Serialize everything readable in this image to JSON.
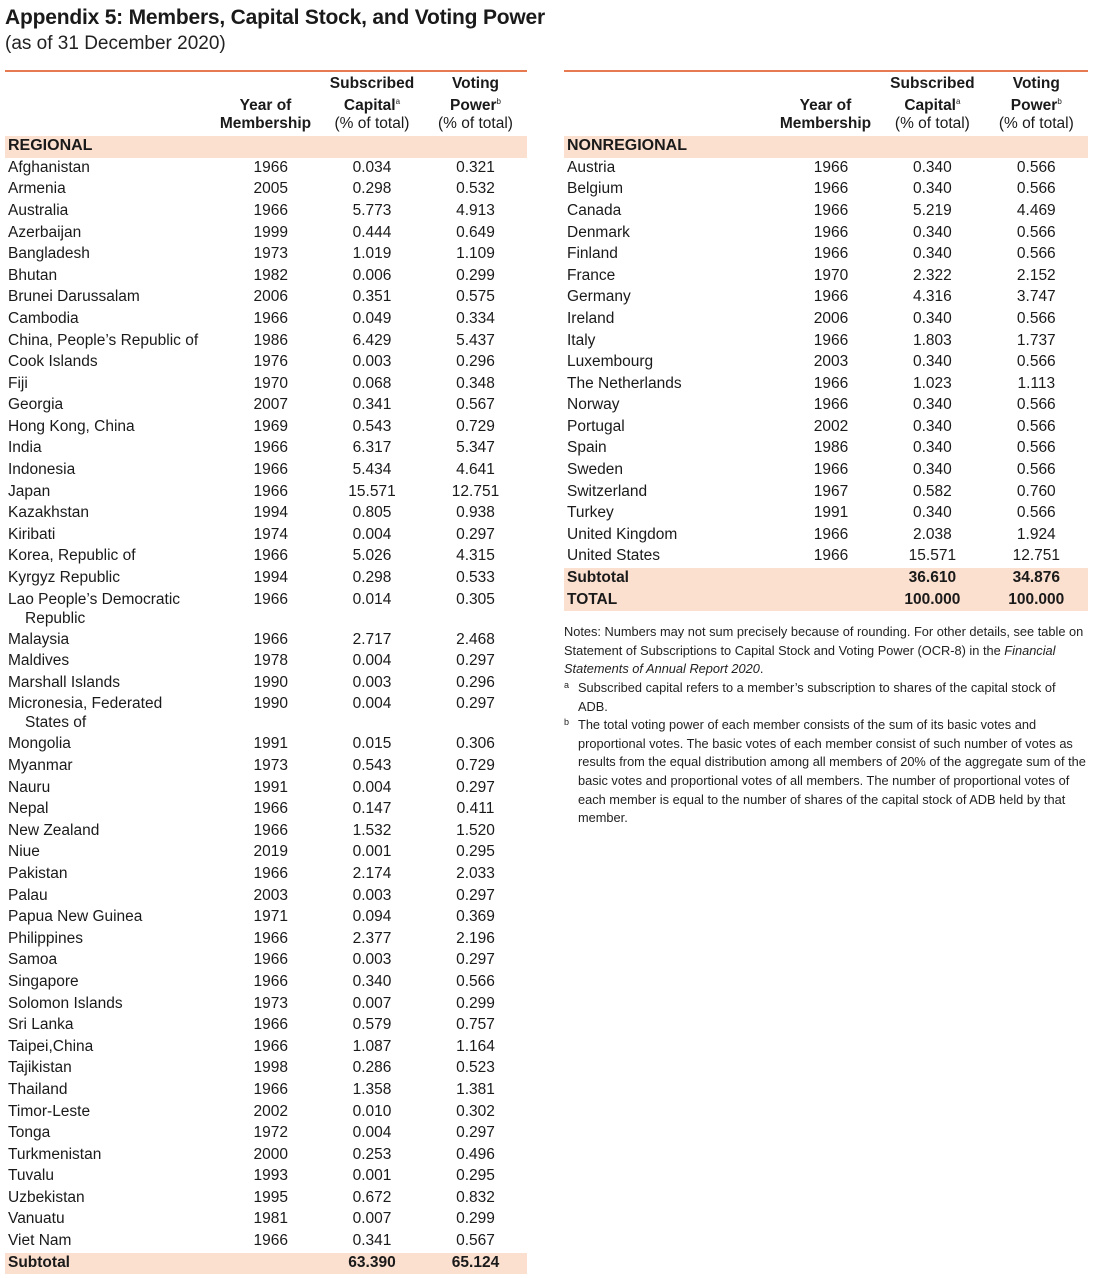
{
  "title": "Appendix 5: Members, Capital Stock, and Voting Power",
  "subtitle": "(as of 31 December 2020)",
  "headers": {
    "year_line1": "Year of",
    "year_line2": "Membership",
    "sub_line1": "Subscribed",
    "sub_line2": "Capital",
    "sub_mark": "a",
    "vote_line1": "Voting",
    "vote_line2": "Power",
    "vote_mark": "b",
    "pct": "(% of total)"
  },
  "regional": {
    "label": "REGIONAL",
    "rows": [
      {
        "name": "Afghanistan",
        "year": "1966",
        "sub": "0.034",
        "vote": "0.321"
      },
      {
        "name": "Armenia",
        "year": "2005",
        "sub": "0.298",
        "vote": "0.532"
      },
      {
        "name": "Australia",
        "year": "1966",
        "sub": "5.773",
        "vote": "4.913"
      },
      {
        "name": "Azerbaijan",
        "year": "1999",
        "sub": "0.444",
        "vote": "0.649"
      },
      {
        "name": "Bangladesh",
        "year": "1973",
        "sub": "1.019",
        "vote": "1.109"
      },
      {
        "name": "Bhutan",
        "year": "1982",
        "sub": "0.006",
        "vote": "0.299"
      },
      {
        "name": "Brunei Darussalam",
        "year": "2006",
        "sub": "0.351",
        "vote": "0.575"
      },
      {
        "name": "Cambodia",
        "year": "1966",
        "sub": "0.049",
        "vote": "0.334"
      },
      {
        "name": " China, People’s Republic of",
        "year": "1986",
        "sub": "6.429",
        "vote": "5.437"
      },
      {
        "name": "Cook Islands",
        "year": "1976",
        "sub": "0.003",
        "vote": "0.296"
      },
      {
        "name": "Fiji",
        "year": "1970",
        "sub": "0.068",
        "vote": "0.348"
      },
      {
        "name": "Georgia",
        "year": "2007",
        "sub": "0.341",
        "vote": "0.567"
      },
      {
        "name": "Hong Kong, China",
        "year": "1969",
        "sub": "0.543",
        "vote": "0.729"
      },
      {
        "name": "India",
        "year": "1966",
        "sub": "6.317",
        "vote": "5.347"
      },
      {
        "name": "Indonesia",
        "year": "1966",
        "sub": "5.434",
        "vote": "4.641"
      },
      {
        "name": "Japan",
        "year": "1966",
        "sub": "15.571",
        "vote": "12.751"
      },
      {
        "name": "Kazakhstan",
        "year": "1994",
        "sub": "0.805",
        "vote": "0.938"
      },
      {
        "name": "Kiribati",
        "year": "1974",
        "sub": "0.004",
        "vote": "0.297"
      },
      {
        "name": "Korea, Republic of",
        "year": "1966",
        "sub": "5.026",
        "vote": "4.315"
      },
      {
        "name": "Kyrgyz Republic",
        "year": "1994",
        "sub": "0.298",
        "vote": "0.533"
      },
      {
        "name": "Lao People’s Democratic",
        "name2": "Republic",
        "year": "1966",
        "sub": "0.014",
        "vote": "0.305"
      },
      {
        "name": "Malaysia",
        "year": "1966",
        "sub": "2.717",
        "vote": "2.468"
      },
      {
        "name": "Maldives",
        "year": "1978",
        "sub": "0.004",
        "vote": "0.297"
      },
      {
        "name": "Marshall Islands",
        "year": "1990",
        "sub": "0.003",
        "vote": "0.296"
      },
      {
        "name": "Micronesia, Federated",
        "name2": "States of",
        "year": "1990",
        "sub": "0.004",
        "vote": "0.297"
      },
      {
        "name": "Mongolia",
        "year": "1991",
        "sub": "0.015",
        "vote": "0.306"
      },
      {
        "name": "Myanmar",
        "year": "1973",
        "sub": "0.543",
        "vote": "0.729"
      },
      {
        "name": "Nauru",
        "year": "1991",
        "sub": "0.004",
        "vote": "0.297"
      },
      {
        "name": "Nepal",
        "year": "1966",
        "sub": "0.147",
        "vote": "0.411"
      },
      {
        "name": "New Zealand",
        "year": "1966",
        "sub": "1.532",
        "vote": "1.520"
      },
      {
        "name": "Niue",
        "year": "2019",
        "sub": "0.001",
        "vote": "0.295"
      },
      {
        "name": "Pakistan",
        "year": "1966",
        "sub": "2.174",
        "vote": "2.033"
      },
      {
        "name": "Palau",
        "year": "2003",
        "sub": "0.003",
        "vote": "0.297"
      },
      {
        "name": "Papua New Guinea",
        "year": "1971",
        "sub": "0.094",
        "vote": "0.369"
      },
      {
        "name": "Philippines",
        "year": "1966",
        "sub": "2.377",
        "vote": "2.196"
      },
      {
        "name": "Samoa",
        "year": "1966",
        "sub": "0.003",
        "vote": "0.297"
      },
      {
        "name": "Singapore",
        "year": "1966",
        "sub": "0.340",
        "vote": "0.566"
      },
      {
        "name": "Solomon Islands",
        "year": "1973",
        "sub": "0.007",
        "vote": "0.299"
      },
      {
        "name": "Sri Lanka",
        "year": "1966",
        "sub": "0.579",
        "vote": "0.757"
      },
      {
        "name": "Taipei,China",
        "year": "1966",
        "sub": "1.087",
        "vote": "1.164"
      },
      {
        "name": "Tajikistan",
        "year": "1998",
        "sub": "0.286",
        "vote": "0.523"
      },
      {
        "name": "Thailand",
        "year": "1966",
        "sub": "1.358",
        "vote": "1.381"
      },
      {
        "name": "Timor-Leste",
        "year": "2002",
        "sub": "0.010",
        "vote": "0.302"
      },
      {
        "name": "Tonga",
        "year": "1972",
        "sub": "0.004",
        "vote": "0.297"
      },
      {
        "name": "Turkmenistan",
        "year": "2000",
        "sub": "0.253",
        "vote": "0.496"
      },
      {
        "name": "Tuvalu",
        "year": "1993",
        "sub": "0.001",
        "vote": "0.295"
      },
      {
        "name": "Uzbekistan",
        "year": "1995",
        "sub": "0.672",
        "vote": "0.832"
      },
      {
        "name": "Vanuatu",
        "year": "1981",
        "sub": "0.007",
        "vote": "0.299"
      },
      {
        "name": "Viet Nam",
        "year": "1966",
        "sub": "0.341",
        "vote": "0.567"
      }
    ],
    "subtotal": {
      "label": "Subtotal",
      "sub": "63.390",
      "vote": "65.124"
    }
  },
  "nonregional": {
    "label": "NONREGIONAL",
    "rows": [
      {
        "name": "Austria",
        "year": "1966",
        "sub": "0.340",
        "vote": "0.566"
      },
      {
        "name": "Belgium",
        "year": "1966",
        "sub": "0.340",
        "vote": "0.566"
      },
      {
        "name": "Canada",
        "year": "1966",
        "sub": "5.219",
        "vote": "4.469"
      },
      {
        "name": "Denmark",
        "year": "1966",
        "sub": "0.340",
        "vote": "0.566"
      },
      {
        "name": "Finland",
        "year": "1966",
        "sub": "0.340",
        "vote": "0.566"
      },
      {
        "name": "France",
        "year": "1970",
        "sub": "2.322",
        "vote": "2.152"
      },
      {
        "name": "Germany",
        "year": "1966",
        "sub": "4.316",
        "vote": "3.747"
      },
      {
        "name": "Ireland",
        "year": "2006",
        "sub": "0.340",
        "vote": "0.566"
      },
      {
        "name": "Italy",
        "year": "1966",
        "sub": "1.803",
        "vote": "1.737"
      },
      {
        "name": "Luxembourg",
        "year": "2003",
        "sub": "0.340",
        "vote": "0.566"
      },
      {
        "name": "The Netherlands",
        "year": "1966",
        "sub": "1.023",
        "vote": "1.113"
      },
      {
        "name": "Norway",
        "year": "1966",
        "sub": "0.340",
        "vote": "0.566"
      },
      {
        "name": "Portugal",
        "year": "2002",
        "sub": "0.340",
        "vote": "0.566"
      },
      {
        "name": "Spain",
        "year": "1986",
        "sub": "0.340",
        "vote": "0.566"
      },
      {
        "name": "Sweden",
        "year": "1966",
        "sub": "0.340",
        "vote": "0.566"
      },
      {
        "name": "Switzerland",
        "year": "1967",
        "sub": "0.582",
        "vote": "0.760"
      },
      {
        "name": "Turkey",
        "year": "1991",
        "sub": "0.340",
        "vote": "0.566"
      },
      {
        "name": "United Kingdom",
        "year": "1966",
        "sub": "2.038",
        "vote": "1.924"
      },
      {
        "name": "United States",
        "year": "1966",
        "sub": "15.571",
        "vote": "12.751"
      }
    ],
    "subtotal": {
      "label": "Subtotal",
      "sub": "36.610",
      "vote": "34.876"
    },
    "total": {
      "label": "TOTAL",
      "sub": "100.000",
      "vote": "100.000"
    }
  },
  "notes": {
    "main_a": "Notes: Numbers may not sum precisely because of rounding. For other details, see table on Statement of Subscriptions to Capital Stock and Voting Power (OCR-8) in the ",
    "main_italic": "Financial Statements of Annual Report 2020",
    "main_b": ".",
    "fn_a_mark": "a",
    "fn_a": "Subscribed capital refers to a member’s subscription to shares of the capital stock of ADB.",
    "fn_b_mark": "b",
    "fn_b": "The total voting power of each member consists of the sum of its basic votes and proportional votes. The basic votes of each member consist of such number of votes as results from the equal distribution among all members of 20% of the aggregate sum of the basic votes and proportional votes of all members. The number of proportional votes of each member is equal to the number of shares of the capital stock of ADB held by that member."
  }
}
